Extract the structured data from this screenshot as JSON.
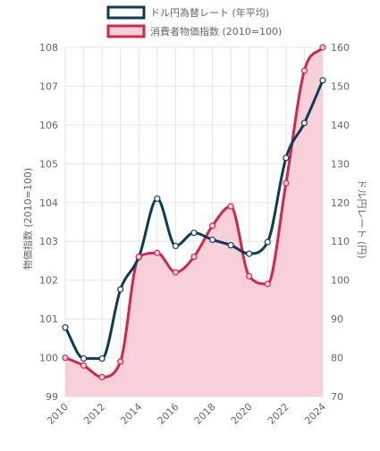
{
  "chart_data": {
    "type": "line",
    "title": "",
    "x": [
      "2010",
      "2011",
      "2012",
      "2013",
      "2014",
      "2015",
      "2016",
      "2017",
      "2018",
      "2019",
      "2020",
      "2021",
      "2022",
      "2023",
      "2024"
    ],
    "x_tick_labels": [
      "2010",
      "2012",
      "2014",
      "2016",
      "2018",
      "2020",
      "2022",
      "2024"
    ],
    "series": [
      {
        "name": "ドル円為替レート (年平均)",
        "axis": "right",
        "color": "#0d3b59",
        "fill": "none",
        "values": [
          87.8,
          79.8,
          79.8,
          97.6,
          105.9,
          121.0,
          108.8,
          112.2,
          110.4,
          109.0,
          106.8,
          109.8,
          131.5,
          140.5,
          151.5
        ]
      },
      {
        "name": "消費者物価指数 (2010=100)",
        "axis": "left",
        "color": "#d1264d",
        "fill": "#f8d0da",
        "values": [
          100.0,
          99.8,
          99.5,
          99.9,
          102.6,
          102.7,
          102.2,
          102.6,
          103.4,
          103.9,
          102.1,
          101.9,
          104.5,
          107.4,
          108.0
        ]
      }
    ],
    "y_left": {
      "label": "物価指数 (2010=100)",
      "min": 99,
      "max": 108,
      "ticks": [
        "99",
        "100",
        "101",
        "102",
        "103",
        "104",
        "105",
        "106",
        "107",
        "108"
      ]
    },
    "y_right": {
      "label": "ドル円レート (円)",
      "min": 70,
      "max": 160,
      "ticks": [
        "70",
        "80",
        "90",
        "100",
        "110",
        "120",
        "130",
        "140",
        "150",
        "160"
      ]
    },
    "grid": true,
    "legend": "top"
  }
}
